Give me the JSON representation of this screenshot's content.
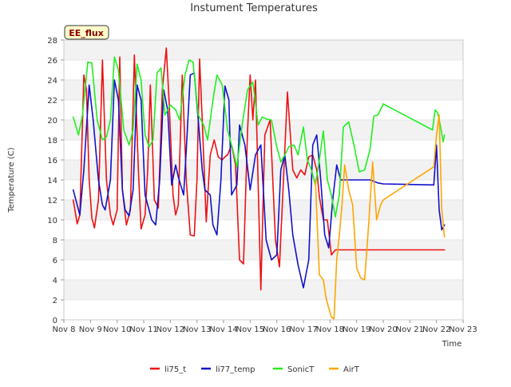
{
  "chart_data": {
    "type": "line",
    "title": "Instument Temperatures",
    "xlabel": "Time",
    "ylabel": "Temperature (C)",
    "annotation": "EE_flux",
    "xlim": [
      8,
      23
    ],
    "ylim": [
      0,
      28
    ],
    "x_ticks": [
      8,
      9,
      10,
      11,
      12,
      13,
      14,
      15,
      16,
      17,
      18,
      19,
      20,
      21,
      22,
      23
    ],
    "x_tick_labels": [
      "Nov 8",
      "Nov 9",
      "Nov 10",
      "Nov 11",
      "Nov 12",
      "Nov 13",
      "Nov 14",
      "Nov 15",
      "Nov 16",
      "Nov 17",
      "Nov 18",
      "Nov 19",
      "Nov 20",
      "Nov 21",
      "Nov 22",
      "Nov 23"
    ],
    "y_ticks": [
      0,
      2,
      4,
      6,
      8,
      10,
      12,
      14,
      16,
      18,
      20,
      22,
      24,
      26,
      28
    ],
    "grid": "horizontal bands",
    "legend_position": "bottom",
    "series": [
      {
        "name": "li75_t",
        "color": "#ee1111",
        "x": [
          8.35,
          8.5,
          8.6,
          8.75,
          8.85,
          8.95,
          9.05,
          9.15,
          9.3,
          9.45,
          9.6,
          9.75,
          9.85,
          10.0,
          10.1,
          10.2,
          10.35,
          10.5,
          10.65,
          10.8,
          10.9,
          11.05,
          11.15,
          11.25,
          11.4,
          11.55,
          11.7,
          11.85,
          11.95,
          12.1,
          12.2,
          12.3,
          12.45,
          12.6,
          12.75,
          12.9,
          13.0,
          13.1,
          13.2,
          13.35,
          13.5,
          13.65,
          13.8,
          13.95,
          14.05,
          14.15,
          14.3,
          14.45,
          14.6,
          14.75,
          14.9,
          15.0,
          15.1,
          15.2,
          15.4,
          15.55,
          15.75,
          15.95,
          16.1,
          16.25,
          16.4,
          16.6,
          16.75,
          16.9,
          17.05,
          17.2,
          17.35,
          17.5,
          17.6,
          17.75,
          17.9,
          18.05,
          18.2,
          18.35,
          18.5,
          18.6,
          18.75,
          18.9,
          19.05,
          19.2,
          19.35,
          19.45,
          19.6,
          19.8,
          20.0,
          21.9,
          22.0,
          22.1,
          22.2,
          22.3
        ],
        "y": [
          12,
          9.6,
          10.5,
          24.5,
          23,
          14,
          10.2,
          9.2,
          12,
          26,
          14,
          10.5,
          9.5,
          11,
          26.3,
          13,
          9.5,
          11,
          26.5,
          15,
          9.1,
          10.5,
          15,
          23.5,
          12,
          11.2,
          23,
          27.2,
          22,
          12.5,
          10.5,
          11.5,
          24.5,
          14,
          8.5,
          8.4,
          14,
          26.1,
          20,
          9.8,
          16.5,
          18,
          16.3,
          16,
          16.3,
          16.5,
          17.5,
          15.5,
          6,
          5.6,
          18.8,
          24.5,
          20,
          24,
          3,
          18.5,
          20,
          8,
          5.3,
          14,
          22.8,
          15,
          14.2,
          15,
          14.5,
          16.3,
          16.5,
          15,
          12.3,
          10,
          10,
          6.5,
          7.0,
          7.0,
          7.0,
          7.0,
          7.0,
          7.0,
          7.0,
          7.0,
          7.0,
          7.0,
          7.0,
          7.0,
          7.0,
          7.0,
          7.0,
          7.0,
          7.0,
          7.0
        ]
      },
      {
        "name": "li77_temp",
        "color": "#1111cc",
        "x": [
          8.35,
          8.6,
          8.75,
          8.95,
          9.1,
          9.3,
          9.45,
          9.55,
          9.75,
          9.9,
          10.05,
          10.2,
          10.3,
          10.45,
          10.6,
          10.75,
          10.9,
          11.05,
          11.2,
          11.3,
          11.45,
          11.6,
          11.75,
          11.9,
          12.05,
          12.2,
          12.3,
          12.5,
          12.6,
          12.75,
          12.9,
          13.05,
          13.2,
          13.3,
          13.5,
          13.6,
          13.75,
          13.9,
          14.05,
          14.2,
          14.3,
          14.5,
          14.6,
          14.8,
          15.0,
          15.2,
          15.4,
          15.6,
          15.8,
          16.0,
          16.15,
          16.3,
          16.45,
          16.6,
          16.8,
          17.0,
          17.2,
          17.35,
          17.5,
          17.65,
          17.8,
          17.95,
          18.1,
          18.25,
          18.4,
          18.55,
          18.7,
          18.85,
          19.0,
          19.2,
          19.5,
          19.8,
          20.0,
          21.9,
          22.0,
          22.1,
          22.2,
          22.3
        ],
        "y": [
          13,
          10.5,
          15,
          23.5,
          20,
          14,
          11.5,
          11,
          14,
          24,
          22,
          13,
          11,
          10.4,
          13,
          23.5,
          22,
          12.5,
          11,
          10,
          9.5,
          14,
          23,
          21,
          13.5,
          15.5,
          14.3,
          12.5,
          17,
          24.5,
          24.7,
          20,
          15,
          13,
          12.5,
          9.5,
          8.5,
          14,
          23.4,
          22,
          12.5,
          13.5,
          19.5,
          17.5,
          13,
          16.5,
          17.5,
          8,
          6.0,
          6.5,
          15,
          16.5,
          13,
          8.5,
          5.5,
          3.2,
          6,
          17.5,
          18.5,
          14,
          8.5,
          7.2,
          12,
          15.5,
          14,
          14,
          14,
          14,
          14,
          14,
          14,
          13.7,
          13.6,
          13.5,
          17.5,
          11,
          9,
          9.5
        ]
      },
      {
        "name": "SonicT",
        "color": "#22ee22",
        "x": [
          8.35,
          8.55,
          8.7,
          8.9,
          9.05,
          9.25,
          9.45,
          9.6,
          9.75,
          9.9,
          10.05,
          10.25,
          10.45,
          10.6,
          10.75,
          10.9,
          11.05,
          11.2,
          11.35,
          11.5,
          11.65,
          11.8,
          12.0,
          12.2,
          12.35,
          12.55,
          12.7,
          12.85,
          13.05,
          13.25,
          13.4,
          13.6,
          13.75,
          13.95,
          14.15,
          14.35,
          14.5,
          14.7,
          14.9,
          15.1,
          15.3,
          15.45,
          15.6,
          15.8,
          16.0,
          16.15,
          16.3,
          16.45,
          16.65,
          16.8,
          17.0,
          17.15,
          17.3,
          17.45,
          17.6,
          17.75,
          17.9,
          18.05,
          18.2,
          18.35,
          18.5,
          18.7,
          18.9,
          19.1,
          19.3,
          19.5,
          19.65,
          19.8,
          20.0,
          21.85,
          21.95,
          22.05,
          22.15,
          22.25,
          22.3
        ],
        "y": [
          20.3,
          18.5,
          20.5,
          25.8,
          25.7,
          20,
          18,
          18.3,
          20,
          26.3,
          25,
          19,
          17.5,
          19,
          25.6,
          24,
          18.5,
          17.3,
          18,
          24.7,
          25.2,
          20.5,
          21.5,
          21,
          20,
          24.5,
          26,
          25.8,
          20.5,
          19.5,
          18,
          22,
          24.5,
          23.5,
          19,
          17,
          15.3,
          19.5,
          23,
          23.8,
          19.5,
          20.3,
          20.1,
          20,
          17.3,
          15.8,
          16.5,
          17.3,
          17.5,
          16.5,
          19.3,
          16,
          15,
          13.5,
          16,
          18.9,
          14,
          12.5,
          10.3,
          12.5,
          19.3,
          19.8,
          17.5,
          14.8,
          15,
          17,
          20.4,
          20.5,
          21.6,
          19.0,
          21,
          20.7,
          19.4,
          17.8,
          18.5
        ]
      },
      {
        "name": "AirT",
        "color": "#ffa500",
        "x": [
          17.45,
          17.6,
          17.75,
          17.85,
          17.95,
          18.05,
          18.15,
          18.25,
          18.35,
          18.45,
          18.55,
          18.7,
          18.85,
          19.0,
          19.15,
          19.3,
          19.45,
          19.6,
          19.75,
          19.9,
          20.0,
          21.9,
          22.0,
          22.1,
          22.2,
          22.3
        ],
        "y": [
          14,
          4.5,
          4.0,
          2.2,
          1.2,
          0.3,
          0.1,
          6,
          8.5,
          11.5,
          15.5,
          13,
          11.5,
          5.2,
          4.2,
          4.0,
          9.5,
          15.8,
          10,
          11.5,
          12,
          15.3,
          18.5,
          20.5,
          11,
          8.3
        ]
      }
    ]
  }
}
